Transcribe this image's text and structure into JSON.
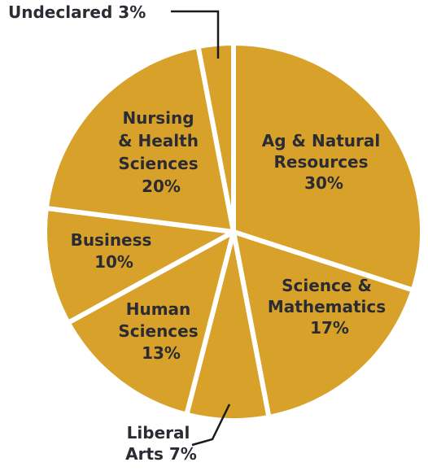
{
  "chart_data": {
    "type": "pie",
    "title": "",
    "colors": {
      "slice": "#D8A22A",
      "separator": "#FFFFFF",
      "text": "#2B2B33",
      "leader": "#1A1A1A"
    },
    "slices": [
      {
        "label_lines": [
          "Ag & Natural",
          "Resources",
          "30%"
        ],
        "value": 30
      },
      {
        "label_lines": [
          "Science &",
          "Mathematics",
          "17%"
        ],
        "value": 17
      },
      {
        "label_lines": [
          "Liberal",
          "Arts 7%"
        ],
        "value": 7
      },
      {
        "label_lines": [
          "Human",
          "Sciences",
          "13%"
        ],
        "value": 13
      },
      {
        "label_lines": [
          "Business",
          "10%"
        ],
        "value": 10
      },
      {
        "label_lines": [
          "Nursing",
          "& Health",
          "Sciences",
          "20%"
        ],
        "value": 20
      },
      {
        "label_lines": [
          "Undeclared 3%"
        ],
        "value": 3
      }
    ]
  }
}
